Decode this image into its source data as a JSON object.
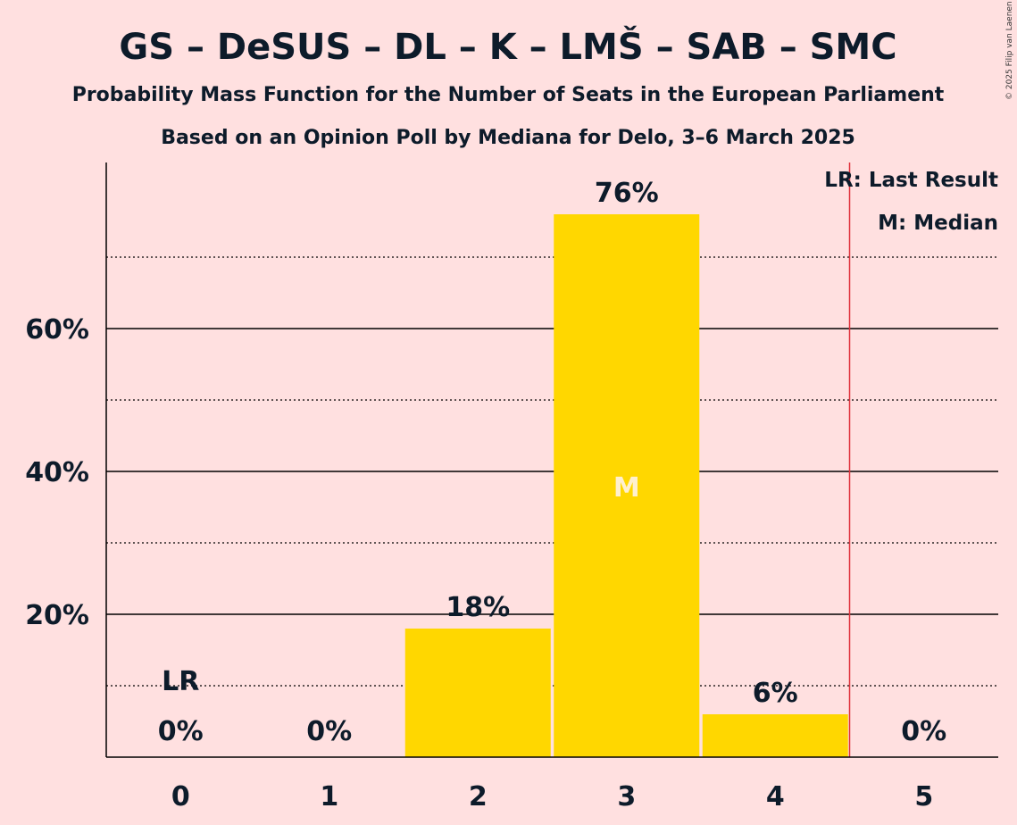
{
  "title": "GS – DeSUS – DL – K – LMŠ – SAB – SMC",
  "subtitle1": "Probability Mass Function for the Number of Seats in the European Parliament",
  "subtitle2": "Based on an Opinion Poll by Mediana for Delo, 3–6 March 2025",
  "copyright": "© 2025 Filip van Laenen",
  "legend": {
    "lr": "LR: Last Result",
    "m": "M: Median"
  },
  "colors": {
    "bar": "#FFD700",
    "background": "#FFE0E0",
    "last_result_line": "#E0303A",
    "median_text": "#FFF0D0"
  },
  "chart_data": {
    "type": "bar",
    "categories": [
      "0",
      "1",
      "2",
      "3",
      "4",
      "5"
    ],
    "values": [
      0,
      0,
      18,
      76,
      6,
      0
    ],
    "data_labels": [
      "0%",
      "0%",
      "18%",
      "76%",
      "6%",
      "0%"
    ],
    "ylim": [
      0,
      83
    ],
    "y_ticks": [
      {
        "value": 20,
        "label": "20%"
      },
      {
        "value": 40,
        "label": "40%"
      },
      {
        "value": 60,
        "label": "60%"
      }
    ],
    "dotted_gridlines": [
      10,
      30,
      50,
      70
    ],
    "last_result": {
      "seats": 0,
      "label": "LR"
    },
    "median": {
      "seats": 3,
      "label": "M"
    },
    "last_result_line_at": 4.5
  }
}
